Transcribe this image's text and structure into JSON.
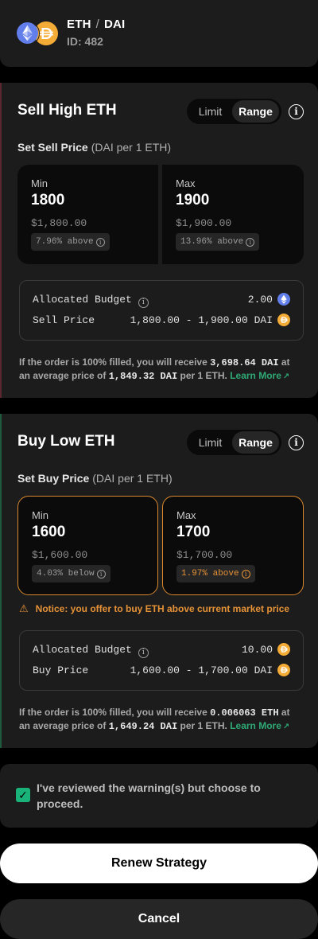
{
  "header": {
    "base_token": "ETH",
    "separator": "/",
    "quote_token": "DAI",
    "id_label": "ID: 482"
  },
  "colors": {
    "eth": "#627eea",
    "dai": "#f5ac37",
    "accent_green": "#19b37a",
    "warning_orange": "#e69237"
  },
  "sell": {
    "title": "Sell High ETH",
    "toggle_limit": "Limit",
    "toggle_range": "Range",
    "active_toggle": "Range",
    "set_label": "Set Sell Price",
    "unit": "(DAI per 1 ETH)",
    "min_label": "Min",
    "min_value": "1800",
    "min_usd": "$1,800.00",
    "min_pct": "7.96% above",
    "max_label": "Max",
    "max_value": "1900",
    "max_usd": "$1,900.00",
    "max_pct": "13.96% above",
    "budget_label": "Allocated Budget",
    "budget_value": "2.00",
    "budget_icon": "eth-icon",
    "price_label": "Sell Price",
    "price_value": "1,800.00 - 1,900.00 DAI",
    "price_icon": "dai-icon",
    "summary_pre": "If the order is 100% filled, you will receive",
    "summary_amount": "3,698.64 DAI",
    "summary_mid": "at an average price of",
    "summary_avg": "1,849.32 DAI",
    "summary_post": "per 1 ETH.",
    "learn_more": "Learn More"
  },
  "buy": {
    "title": "Buy Low ETH",
    "toggle_limit": "Limit",
    "toggle_range": "Range",
    "active_toggle": "Range",
    "set_label": "Set Buy Price",
    "unit": "(DAI per 1 ETH)",
    "min_label": "Min",
    "min_value": "1600",
    "min_usd": "$1,600.00",
    "min_pct": "4.03% below",
    "max_label": "Max",
    "max_value": "1700",
    "max_usd": "$1,700.00",
    "max_pct": "1.97% above",
    "notice": "Notice: you offer to buy ETH above current market price",
    "budget_label": "Allocated Budget",
    "budget_value": "10.00",
    "budget_icon": "dai-icon",
    "price_label": "Buy Price",
    "price_value": "1,600.00 - 1,700.00 DAI",
    "price_icon": "dai-icon",
    "summary_pre": "If the order is 100% filled, you will receive",
    "summary_amount": "0.006063 ETH",
    "summary_mid": "at an average price of",
    "summary_avg": "1,649.24 DAI",
    "summary_post": "per 1 ETH.",
    "learn_more": "Learn More"
  },
  "ack": {
    "checked": true,
    "text": "I've reviewed the warning(s) but choose to proceed."
  },
  "actions": {
    "renew": "Renew Strategy",
    "cancel": "Cancel"
  }
}
